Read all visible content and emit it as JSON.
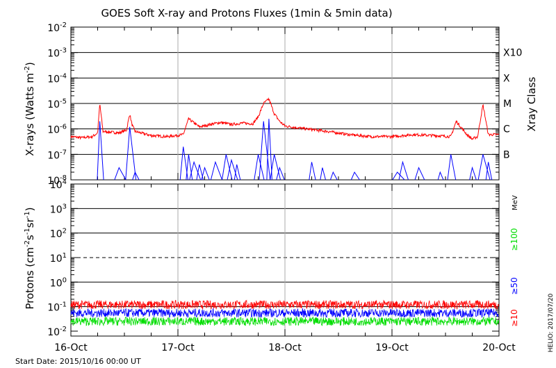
{
  "title": "GOES Soft X-ray and Protons Fluxes   (1min & 5min data)",
  "footer": {
    "start_date": "Start Date: 2015/10/16 00:00 UT",
    "credit": "HELIO: 2017/07/20"
  },
  "colors": {
    "xray_long": "#ff0000",
    "xray_short": "#0000ff",
    "proton_10": "#ff0000",
    "proton_50": "#0000ff",
    "proton_100": "#00dd00",
    "gridline": "#000000",
    "day_line": "#aaaaaa"
  },
  "chart_data": [
    {
      "type": "line",
      "title": "GOES Soft X-ray and Protons Fluxes   (1min & 5min data)",
      "ylabel": "X-rays (Watts m",
      "ylabel_sup": "-2",
      "ylabel_close": ")",
      "y_scale": "log",
      "ylim": [
        1e-08,
        0.01
      ],
      "y_ticks": [
        {
          "base": "10",
          "exp": "-8"
        },
        {
          "base": "10",
          "exp": "-7"
        },
        {
          "base": "10",
          "exp": "-6"
        },
        {
          "base": "10",
          "exp": "-5"
        },
        {
          "base": "10",
          "exp": "-4"
        },
        {
          "base": "10",
          "exp": "-3"
        },
        {
          "base": "10",
          "exp": "-2"
        }
      ],
      "right_axis_title": "Xray Class",
      "right_labels": [
        "B",
        "C",
        "M",
        "X",
        "X10"
      ],
      "x_ticks": [
        "16-Oct",
        "17-Oct",
        "18-Oct",
        "19-Oct",
        "20-Oct"
      ],
      "xlim": [
        "2015-10-16 00:00",
        "2015-10-20 00:00"
      ],
      "grid": "horizontal at class levels, vertical at day boundaries",
      "series": [
        {
          "color": "#ff0000",
          "x_days": [
            0,
            0.1,
            0.2,
            0.25,
            0.27,
            0.3,
            0.45,
            0.52,
            0.55,
            0.57,
            0.6,
            0.75,
            0.9,
            1.05,
            1.1,
            1.2,
            1.3,
            1.4,
            1.5,
            1.6,
            1.7,
            1.75,
            1.8,
            1.85,
            1.9,
            1.95,
            2.0,
            2.2,
            2.4,
            2.6,
            2.8,
            3.0,
            3.2,
            3.4,
            3.55,
            3.6,
            3.7,
            3.75,
            3.8,
            3.85,
            3.9,
            4.0
          ],
          "values": [
            5e-07,
            4.5e-07,
            5e-07,
            7e-07,
            1e-05,
            8e-07,
            7e-07,
            9e-07,
            4e-06,
            1.5e-06,
            8e-07,
            5.5e-07,
            5e-07,
            6e-07,
            2.5e-06,
            1.2e-06,
            1.5e-06,
            1.8e-06,
            1.5e-06,
            1.7e-06,
            1.6e-06,
            3e-06,
            1e-05,
            1.5e-05,
            4e-06,
            2e-06,
            1.3e-06,
            1e-06,
            8e-07,
            6e-07,
            5e-07,
            5e-07,
            6e-07,
            5.5e-07,
            5e-07,
            2e-06,
            6e-07,
            4e-07,
            5e-07,
            9e-06,
            6e-07,
            6e-07
          ]
        },
        {
          "color": "#0000ff",
          "x_days": [
            0.27,
            0.45,
            0.55,
            0.6,
            1.05,
            1.1,
            1.15,
            1.2,
            1.25,
            1.35,
            1.45,
            1.5,
            1.55,
            1.75,
            1.8,
            1.85,
            1.9,
            1.95,
            2.25,
            2.35,
            2.45,
            2.65,
            3.05,
            3.1,
            3.25,
            3.45,
            3.55,
            3.75,
            3.85,
            3.9
          ],
          "values": [
            2e-06,
            3e-08,
            1.2e-06,
            2e-08,
            2e-07,
            1e-07,
            5e-08,
            4e-08,
            3e-08,
            5e-08,
            1e-07,
            6e-08,
            4e-08,
            1e-07,
            2e-06,
            2.5e-06,
            1e-07,
            3e-08,
            5e-08,
            3e-08,
            2e-08,
            2e-08,
            2e-08,
            5e-08,
            3e-08,
            2e-08,
            1e-07,
            3e-08,
            1e-07,
            5e-08
          ]
        }
      ]
    },
    {
      "type": "line",
      "ylabel": "Protons (cm",
      "ylabel_sup1": "-2",
      "ylabel_mid": "s",
      "ylabel_sup2": "-1",
      "ylabel_mid2": "sr",
      "ylabel_sup3": "-1",
      "ylabel_close": ")",
      "y_scale": "log",
      "ylim": [
        0.00631,
        10000
      ],
      "y_ticks": [
        {
          "base": "10",
          "exp": "-2"
        },
        {
          "base": "10",
          "exp": "-1"
        },
        {
          "base": "10",
          "exp": "0"
        },
        {
          "base": "10",
          "exp": "1"
        },
        {
          "base": "10",
          "exp": "2"
        },
        {
          "base": "10",
          "exp": "3"
        },
        {
          "base": "10",
          "exp": "4"
        }
      ],
      "unit_label": "MeV",
      "legend": [
        {
          "label": "≥100",
          "color": "#00dd00"
        },
        {
          "label": "≥50",
          "color": "#0000ff"
        },
        {
          "label": "≥10",
          "color": "#ff0000"
        }
      ],
      "threshold": 10,
      "x_ticks": [
        "16-Oct",
        "17-Oct",
        "18-Oct",
        "19-Oct",
        "20-Oct"
      ],
      "series": [
        {
          "name": "≥10",
          "color": "#ff0000",
          "level": 0.12
        },
        {
          "name": "≥50",
          "color": "#0000ff",
          "level": 0.055
        },
        {
          "name": "≥100",
          "color": "#00dd00",
          "level": 0.025
        }
      ]
    }
  ]
}
